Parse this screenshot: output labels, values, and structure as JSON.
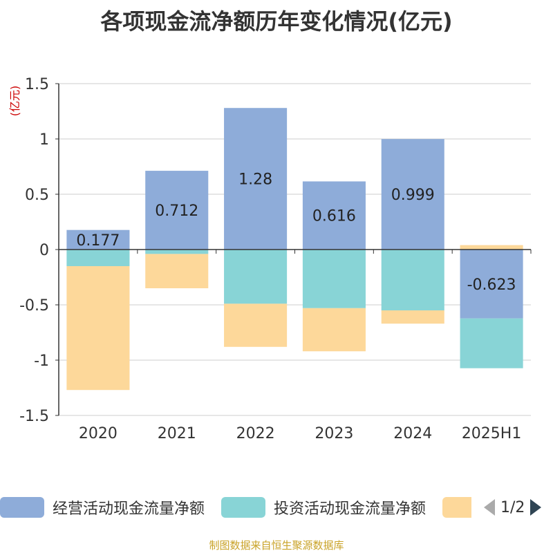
{
  "chart_data": {
    "type": "bar",
    "stacked": true,
    "title": "各项现金流净额历年变化情况(亿元)",
    "ylabel": "(亿元)",
    "categories": [
      "2020",
      "2021",
      "2022",
      "2023",
      "2024",
      "2025H1"
    ],
    "ylim": [
      -1.5,
      1.5
    ],
    "yticks": [
      "1.5",
      "1",
      "0.5",
      "0",
      "-0.5",
      "-1",
      "-1.5"
    ],
    "ytick_values": [
      1.5,
      1,
      0.5,
      0,
      -0.5,
      -1,
      -1.5
    ],
    "grid": true,
    "series": [
      {
        "name": "经营活动现金流量净额",
        "color": "#8eacd9",
        "values": [
          0.177,
          0.712,
          1.28,
          0.616,
          0.999,
          -0.623
        ]
      },
      {
        "name": "投资活动现金流量净额",
        "color": "#88d4d6",
        "values": [
          -0.15,
          -0.04,
          -0.49,
          -0.53,
          -0.55,
          -0.45
        ]
      },
      {
        "name": "",
        "color": "#fdd89a",
        "values": [
          -1.12,
          -0.31,
          -0.39,
          -0.39,
          -0.12,
          0.04
        ]
      }
    ],
    "data_labels": [
      "0.177",
      "0.712",
      "1.28",
      "0.616",
      "0.999",
      "-0.623"
    ],
    "legend_position": "bottom"
  },
  "legend": {
    "items": [
      {
        "label": "经营活动现金流量净额",
        "color": "#8eacd9"
      },
      {
        "label": "投资活动现金流量净额",
        "color": "#88d4d6"
      },
      {
        "label": "",
        "color": "#fdd89a"
      }
    ],
    "page": "1/2"
  },
  "footer": {
    "source": "制图数据来自恒生聚源数据库"
  }
}
